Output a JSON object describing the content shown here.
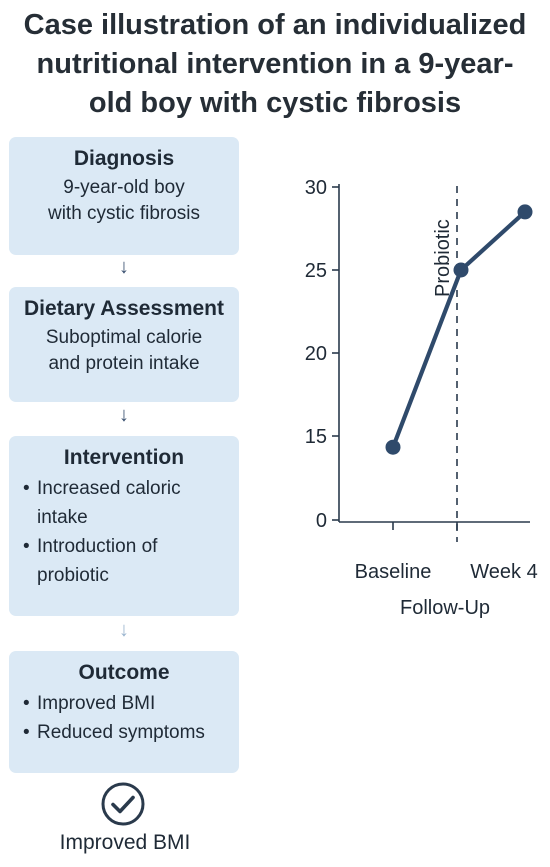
{
  "title": [
    "Case illustration of an individualized",
    "nutritional intervention in a 9-year-",
    "old boy with cystic fibrosis"
  ],
  "steps": [
    {
      "heading": "Diagnosis",
      "lines": [
        "9-year-old boy",
        "with cystic fibrosis"
      ]
    },
    {
      "heading": "Dietary Assessment",
      "lines": [
        "Suboptimal calorie",
        "and protein intake"
      ]
    },
    {
      "heading": "Intervention",
      "bullets": [
        "Increased caloric intake",
        "Introduction of probiotic"
      ]
    },
    {
      "heading": "Outcome",
      "bullets": [
        "Improved BMI",
        "Reduced symptoms"
      ]
    }
  ],
  "arrow_glyph": "↓",
  "result_label": "Improved BMI",
  "result_icon": "check-circle-icon",
  "colors": {
    "box": "#dbe9f5",
    "line": "#2f4a6b"
  },
  "chart_data": {
    "type": "line",
    "x_categories": [
      "Baseline",
      "Week 4"
    ],
    "xlabel": "Follow-Up",
    "y_ticks": [
      0,
      15,
      20,
      25,
      30
    ],
    "points": [
      {
        "label": "Baseline",
        "y": 13
      },
      {
        "label": "",
        "y": 25
      },
      {
        "label": "",
        "y": 28.5
      }
    ],
    "annotation": "Probiotic"
  }
}
